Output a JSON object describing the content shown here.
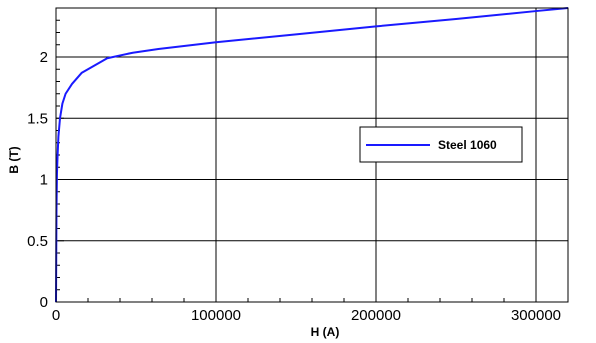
{
  "chart_data": {
    "type": "line",
    "title": "",
    "xlabel": "H (A)",
    "ylabel": "B (T)",
    "xlim": [
      0,
      320000
    ],
    "ylim": [
      0,
      2.4
    ],
    "grid": true,
    "legend_position": "center-right",
    "x_ticks": [
      {
        "value": 0,
        "label": "0"
      },
      {
        "value": 100000,
        "label": "100000"
      },
      {
        "value": 200000,
        "label": "200000"
      },
      {
        "value": 300000,
        "label": "300000"
      }
    ],
    "y_ticks": [
      {
        "value": 0,
        "label": "0"
      },
      {
        "value": 0.5,
        "label": "0.5"
      },
      {
        "value": 1,
        "label": "1"
      },
      {
        "value": 1.5,
        "label": "1.5"
      },
      {
        "value": 2,
        "label": "2"
      }
    ],
    "series": [
      {
        "name": "Steel 1060",
        "color": "#1a1aff",
        "x": [
          0,
          300,
          600,
          1000,
          1500,
          2500,
          4000,
          6000,
          10000,
          16000,
          32000,
          48000,
          64000,
          80000,
          100000,
          150000,
          200000,
          250000,
          300000,
          320000
        ],
        "y": [
          0,
          0.75,
          1.05,
          1.2,
          1.35,
          1.5,
          1.62,
          1.7,
          1.78,
          1.87,
          1.99,
          2.035,
          2.065,
          2.09,
          2.12,
          2.185,
          2.25,
          2.31,
          2.375,
          2.4
        ]
      }
    ]
  }
}
